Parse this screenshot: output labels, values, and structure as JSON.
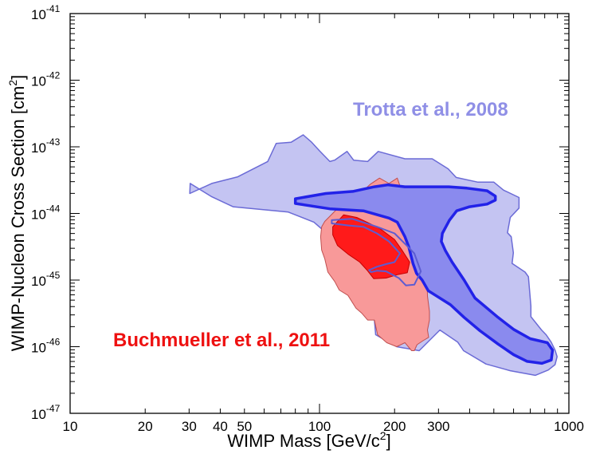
{
  "chart_data": {
    "type": "contour",
    "xlabel": "WIMP Mass [GeV/c",
    "xlabel_sup": "2",
    "xlabel_end": "]",
    "ylabel": "WIMP-Nucleon Cross Section [cm",
    "ylabel_sup": "2",
    "ylabel_end": "]",
    "x_scale": "log",
    "y_scale": "log",
    "xlim": [
      10,
      1000
    ],
    "ylim": [
      1e-47,
      1e-41
    ],
    "grid": false,
    "x_ticks": [
      {
        "value": 10,
        "label": "10"
      },
      {
        "value": 20,
        "label": "20"
      },
      {
        "value": 30,
        "label": "30"
      },
      {
        "value": 40,
        "label": "40"
      },
      {
        "value": 50,
        "label": "50"
      },
      {
        "value": 100,
        "label": "100"
      },
      {
        "value": 200,
        "label": "200"
      },
      {
        "value": 300,
        "label": "300"
      },
      {
        "value": 1000,
        "label": "1000"
      }
    ],
    "y_ticks": [
      {
        "exp": -41,
        "base": "10",
        "sup": "-41"
      },
      {
        "exp": -42,
        "base": "10",
        "sup": "-42"
      },
      {
        "exp": -43,
        "base": "10",
        "sup": "-43"
      },
      {
        "exp": -44,
        "base": "10",
        "sup": "-44"
      },
      {
        "exp": -45,
        "base": "10",
        "sup": "-45"
      },
      {
        "exp": -46,
        "base": "10",
        "sup": "-46"
      },
      {
        "exp": -47,
        "base": "10",
        "sup": "-47"
      }
    ],
    "annotations": [
      {
        "text": "Trotta et al., 2008",
        "color": "#8f8fe6"
      },
      {
        "text": "Buchmueller et al., 2011",
        "color": "#ee1111"
      }
    ],
    "regions": [
      {
        "name": "Trotta 2008 outer",
        "fill": "#c4c4f2",
        "stroke": "#6b6bd6",
        "stroke_width": 1.5,
        "points": [
          [
            30.3,
            -43.55
          ],
          [
            30.2,
            -43.7
          ],
          [
            37,
            -43.55
          ],
          [
            47,
            -43.45
          ],
          [
            62,
            -43.22
          ],
          [
            67,
            -42.95
          ],
          [
            77,
            -42.93
          ],
          [
            86,
            -42.82
          ],
          [
            93,
            -42.93
          ],
          [
            100,
            -43.06
          ],
          [
            110,
            -43.22
          ],
          [
            115,
            -43.2
          ],
          [
            129,
            -43.07
          ],
          [
            137,
            -43.2
          ],
          [
            156,
            -43.22
          ],
          [
            172,
            -43.07
          ],
          [
            220,
            -43.18
          ],
          [
            283,
            -43.18
          ],
          [
            328,
            -43.33
          ],
          [
            353,
            -43.46
          ],
          [
            432,
            -43.53
          ],
          [
            500,
            -43.53
          ],
          [
            547,
            -43.65
          ],
          [
            631,
            -43.76
          ],
          [
            631,
            -43.92
          ],
          [
            582,
            -44.06
          ],
          [
            567,
            -44.29
          ],
          [
            587,
            -44.35
          ],
          [
            599,
            -44.59
          ],
          [
            592,
            -44.75
          ],
          [
            667,
            -44.88
          ],
          [
            688,
            -44.95
          ],
          [
            704,
            -45.39
          ],
          [
            704,
            -45.55
          ],
          [
            777,
            -45.75
          ],
          [
            810,
            -45.82
          ],
          [
            849,
            -45.93
          ],
          [
            880,
            -46.05
          ],
          [
            897,
            -46.15
          ],
          [
            880,
            -46.27
          ],
          [
            827,
            -46.35
          ],
          [
            733,
            -46.43
          ],
          [
            582,
            -46.36
          ],
          [
            465,
            -46.26
          ],
          [
            378,
            -46.06
          ],
          [
            358,
            -45.93
          ],
          [
            304,
            -45.75
          ],
          [
            251,
            -46.06
          ],
          [
            204,
            -46.0
          ],
          [
            168,
            -45.82
          ],
          [
            166,
            -45.6
          ],
          [
            226,
            -45.6
          ],
          [
            255,
            -45.5
          ],
          [
            200,
            -45.33
          ],
          [
            170,
            -45.2
          ],
          [
            160,
            -45.06
          ],
          [
            147,
            -44.9
          ],
          [
            126,
            -44.48
          ],
          [
            107,
            -44.3
          ],
          [
            95,
            -44.13
          ],
          [
            75,
            -43.98
          ],
          [
            45,
            -43.9
          ],
          [
            37,
            -43.75
          ],
          [
            30.3,
            -43.55
          ]
        ]
      },
      {
        "name": "Buchmueller 2011 outer",
        "fill": "#f89999",
        "stroke": "#c05050",
        "stroke_width": 1,
        "points": [
          [
            105,
            -44.12
          ],
          [
            120,
            -43.9
          ],
          [
            141,
            -43.75
          ],
          [
            160,
            -43.56
          ],
          [
            174,
            -43.47
          ],
          [
            190,
            -43.55
          ],
          [
            205,
            -43.47
          ],
          [
            213,
            -43.65
          ],
          [
            227,
            -43.84
          ],
          [
            232,
            -44.06
          ],
          [
            243,
            -44.12
          ],
          [
            236,
            -44.21
          ],
          [
            251,
            -44.4
          ],
          [
            267,
            -44.43
          ],
          [
            276,
            -44.65
          ],
          [
            273,
            -44.85
          ],
          [
            270,
            -44.97
          ],
          [
            271,
            -45.24
          ],
          [
            276,
            -45.47
          ],
          [
            276,
            -45.6
          ],
          [
            271,
            -45.75
          ],
          [
            274,
            -45.86
          ],
          [
            260,
            -45.91
          ],
          [
            246,
            -45.97
          ],
          [
            240,
            -46.06
          ],
          [
            234,
            -46.06
          ],
          [
            220,
            -45.94
          ],
          [
            204,
            -46.0
          ],
          [
            186,
            -45.94
          ],
          [
            171,
            -45.82
          ],
          [
            166,
            -45.6
          ],
          [
            156,
            -45.6
          ],
          [
            148,
            -45.5
          ],
          [
            140,
            -45.42
          ],
          [
            130,
            -45.23
          ],
          [
            120,
            -45.15
          ],
          [
            115,
            -45.02
          ],
          [
            108,
            -44.88
          ],
          [
            105,
            -44.68
          ],
          [
            102,
            -44.55
          ],
          [
            101,
            -44.35
          ],
          [
            102,
            -44.2
          ],
          [
            105,
            -44.12
          ]
        ]
      },
      {
        "name": "Trotta 2008 inner",
        "fill": "#8a8aee",
        "stroke": "#2222e8",
        "stroke_width": 3.5,
        "points": [
          [
            80,
            -43.78
          ],
          [
            106,
            -43.7
          ],
          [
            136,
            -43.67
          ],
          [
            166,
            -43.6
          ],
          [
            188,
            -43.57
          ],
          [
            220,
            -43.6
          ],
          [
            270,
            -43.6
          ],
          [
            330,
            -43.6
          ],
          [
            390,
            -43.62
          ],
          [
            470,
            -43.66
          ],
          [
            507,
            -43.74
          ],
          [
            507,
            -43.8
          ],
          [
            470,
            -43.86
          ],
          [
            400,
            -43.9
          ],
          [
            355,
            -43.96
          ],
          [
            332,
            -44.1
          ],
          [
            311,
            -44.3
          ],
          [
            308,
            -44.42
          ],
          [
            320,
            -44.56
          ],
          [
            340,
            -44.73
          ],
          [
            380,
            -45.0
          ],
          [
            420,
            -45.27
          ],
          [
            520,
            -45.56
          ],
          [
            600,
            -45.74
          ],
          [
            700,
            -45.88
          ],
          [
            820,
            -45.94
          ],
          [
            860,
            -46.05
          ],
          [
            850,
            -46.2
          ],
          [
            780,
            -46.25
          ],
          [
            680,
            -46.22
          ],
          [
            600,
            -46.12
          ],
          [
            520,
            -45.96
          ],
          [
            440,
            -45.76
          ],
          [
            380,
            -45.56
          ],
          [
            335,
            -45.37
          ],
          [
            292,
            -45.23
          ],
          [
            273,
            -45.16
          ],
          [
            258,
            -45.0
          ],
          [
            245,
            -44.9
          ],
          [
            237,
            -44.75
          ],
          [
            228,
            -44.5
          ],
          [
            220,
            -44.35
          ],
          [
            205,
            -44.13
          ],
          [
            190,
            -44.07
          ],
          [
            150,
            -43.96
          ],
          [
            110,
            -43.93
          ],
          [
            80,
            -43.85
          ],
          [
            80,
            -43.78
          ]
        ]
      },
      {
        "name": "Buchmueller 2011 inner",
        "fill": "#ff1a1a",
        "stroke": "#c40000",
        "stroke_width": 1,
        "points": [
          [
            113,
            -44.2
          ],
          [
            125,
            -44.02
          ],
          [
            141,
            -44.06
          ],
          [
            155,
            -44.13
          ],
          [
            175,
            -44.23
          ],
          [
            200,
            -44.39
          ],
          [
            215,
            -44.56
          ],
          [
            230,
            -44.73
          ],
          [
            225,
            -44.89
          ],
          [
            205,
            -44.92
          ],
          [
            185,
            -44.97
          ],
          [
            165,
            -44.98
          ],
          [
            155,
            -44.85
          ],
          [
            145,
            -44.73
          ],
          [
            130,
            -44.61
          ],
          [
            118,
            -44.48
          ],
          [
            113,
            -44.32
          ],
          [
            113,
            -44.2
          ]
        ]
      },
      {
        "name": "Trotta 2008 inner outline",
        "fill": "none",
        "stroke": "#5c5cd2",
        "stroke_width": 2,
        "points": [
          [
            112,
            -44.1
          ],
          [
            135,
            -44.08
          ],
          [
            170,
            -44.2
          ],
          [
            200,
            -44.3
          ],
          [
            222,
            -44.47
          ],
          [
            240,
            -44.6
          ],
          [
            255,
            -44.87
          ],
          [
            240,
            -45.07
          ],
          [
            222,
            -45.08
          ],
          [
            208,
            -44.97
          ],
          [
            185,
            -44.87
          ],
          [
            170,
            -44.86
          ],
          [
            161,
            -44.88
          ],
          [
            158,
            -44.85
          ],
          [
            170,
            -44.8
          ],
          [
            185,
            -44.76
          ],
          [
            200,
            -44.73
          ],
          [
            210,
            -44.6
          ],
          [
            190,
            -44.42
          ],
          [
            170,
            -44.3
          ],
          [
            150,
            -44.2
          ],
          [
            130,
            -44.18
          ],
          [
            112,
            -44.15
          ],
          [
            112,
            -44.1
          ]
        ]
      }
    ]
  }
}
